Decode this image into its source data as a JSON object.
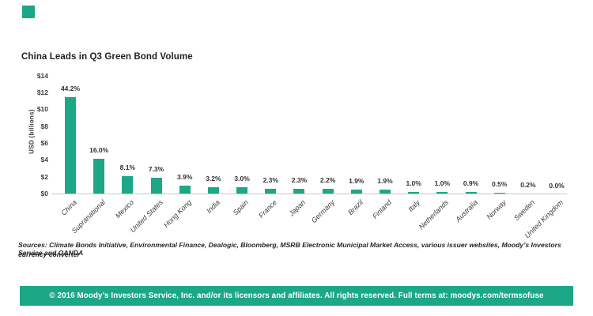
{
  "brand": {
    "accent_color": "#1CA787",
    "logo": "moodys-green-square"
  },
  "chart_data": {
    "type": "bar",
    "title": "China Leads in Q3 Green Bond Volume",
    "xlabel": "",
    "ylabel": "USD (billions)",
    "ylim": [
      0,
      14
    ],
    "ytick_step": 2,
    "ytick_labels": [
      "$0",
      "$2",
      "$4",
      "$6",
      "$8",
      "$10",
      "$12",
      "$14"
    ],
    "grid": false,
    "legend": "none",
    "bar_color": "#1CA787",
    "categories": [
      "China",
      "Supranational",
      "Mexico",
      "United States",
      "Hong Kong",
      "India",
      "Spain",
      "France",
      "Japan",
      "Germany",
      "Brazil",
      "Finland",
      "Italy",
      "Netherlands",
      "Australia",
      "Norway",
      "Sweden",
      "United Kingdom"
    ],
    "values": [
      11.49,
      4.16,
      2.11,
      1.9,
      1.01,
      0.83,
      0.78,
      0.6,
      0.6,
      0.57,
      0.49,
      0.49,
      0.26,
      0.26,
      0.23,
      0.13,
      0.05,
      0
    ],
    "bar_labels": [
      "44.2%",
      "16.0%",
      "8.1%",
      "7.3%",
      "3.9%",
      "3.2%",
      "3.0%",
      "2.3%",
      "2.3%",
      "2.2%",
      "1.9%",
      "1.9%",
      "1.0%",
      "1.0%",
      "0.9%",
      "0.5%",
      "0.2%",
      "0.0%"
    ]
  },
  "sources": {
    "line1": "Sources: Climate Bonds Initiative, Environmental Finance, Dealogic, Bloomberg, MSRB Electronic Municipal Market Access, various issuer websites, Moody’s Investors Service and OANDA",
    "line2": "currency converter"
  },
  "footer": {
    "text": "© 2016 Moody’s Investors Service, Inc. and/or its licensors and affiliates. All rights reserved. Full terms at: moodys.com/termsofuse"
  }
}
